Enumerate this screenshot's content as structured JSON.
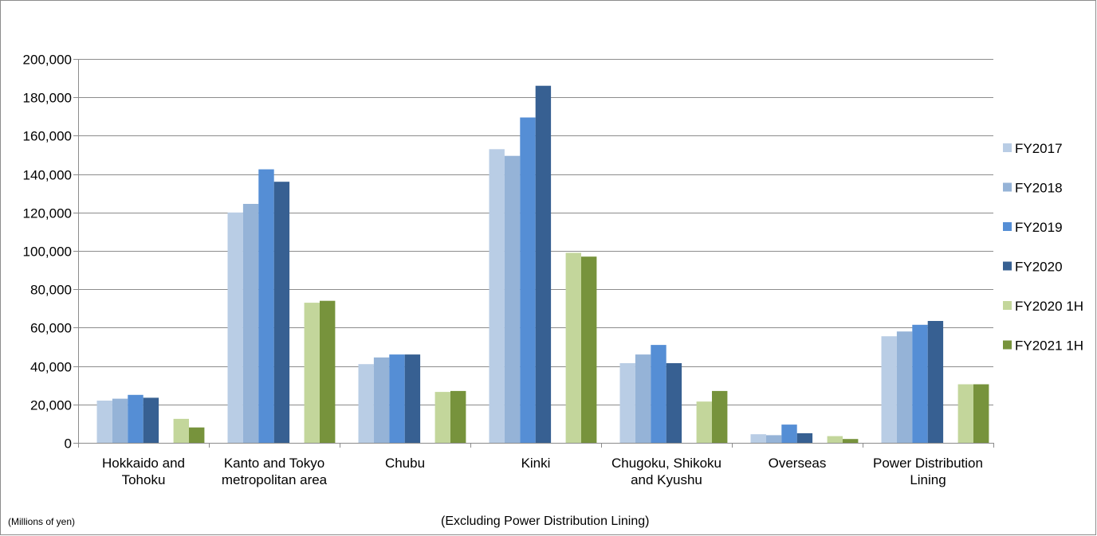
{
  "chart_data": {
    "type": "bar",
    "categories": [
      [
        "Hokkaido and",
        "Tohoku"
      ],
      [
        "Kanto and Tokyo",
        "metropolitan area"
      ],
      [
        "Chubu"
      ],
      [
        "Kinki"
      ],
      [
        "Chugoku, Shikoku",
        "and Kyushu"
      ],
      [
        "Overseas"
      ],
      [
        "Power Distribution",
        "Lining"
      ]
    ],
    "series": [
      {
        "name": "FY2017",
        "color": "#b9cde5",
        "values": [
          22000,
          120000,
          41000,
          153000,
          41500,
          4500,
          55500
        ]
      },
      {
        "name": "FY2018",
        "color": "#95b3d7",
        "values": [
          23000,
          124500,
          44500,
          149500,
          46000,
          4000,
          58000
        ]
      },
      {
        "name": "FY2019",
        "color": "#558ed5",
        "values": [
          25000,
          142500,
          46000,
          169500,
          51000,
          9500,
          61500
        ]
      },
      {
        "name": "FY2020",
        "color": "#376092",
        "values": [
          23500,
          136000,
          46000,
          186000,
          41500,
          5000,
          63500
        ]
      },
      {
        "name": "FY2020 1H",
        "color": "#c3d69b",
        "values": [
          12500,
          73000,
          26500,
          99000,
          21500,
          3500,
          30500
        ]
      },
      {
        "name": "FY2021 1H",
        "color": "#77933c",
        "values": [
          8000,
          74000,
          27000,
          97000,
          27000,
          2000,
          30500
        ]
      }
    ],
    "ylim": [
      0,
      200000
    ],
    "yticks": [
      "0",
      "20,000",
      "40,000",
      "60,000",
      "80,000",
      "100,000",
      "120,000",
      "140,000",
      "160,000",
      "180,000",
      "200,000"
    ],
    "grid": true,
    "legend_position": "right"
  },
  "notes": {
    "units": "(Millions of yen)",
    "footnote": "(Excluding Power Distribution Lining)"
  }
}
